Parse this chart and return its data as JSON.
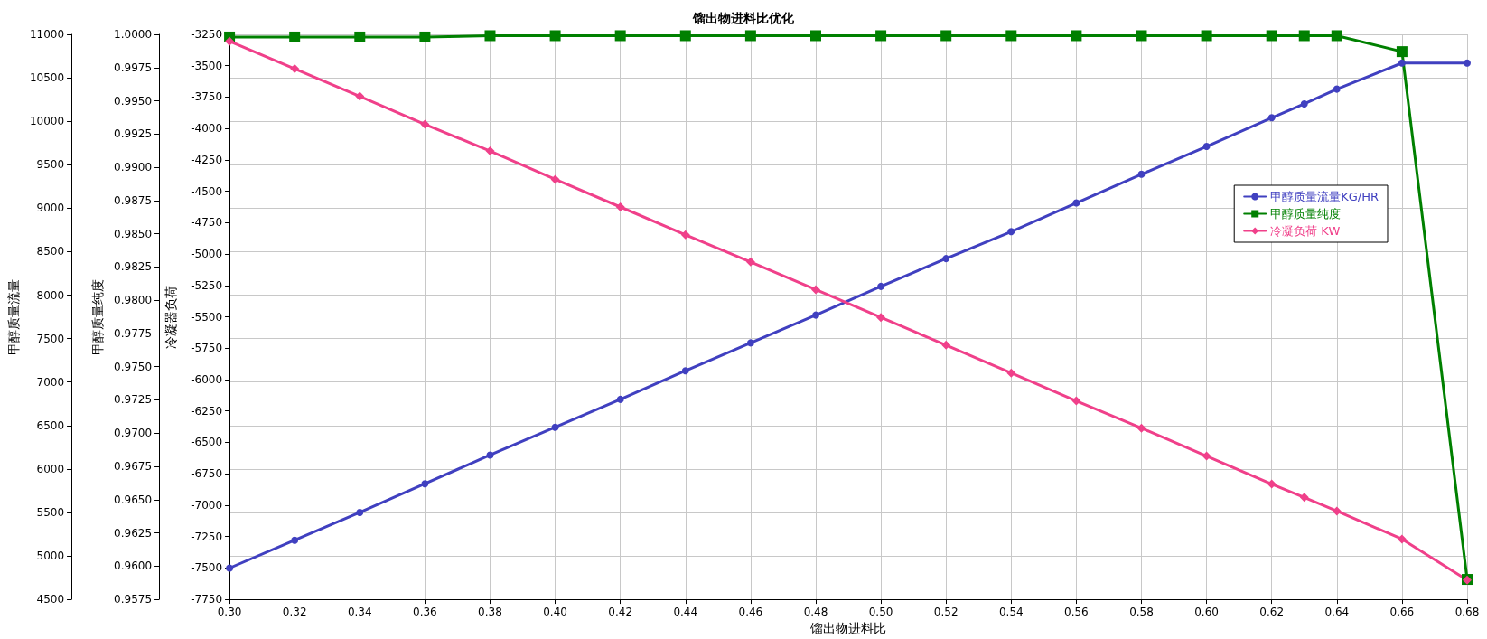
{
  "chart_data": {
    "type": "line",
    "title": "馏出物进料比优化",
    "xlabel": "馏出物进料比",
    "ylabel": "甲醇质量流量",
    "y2label": "甲醇质量纯度",
    "y3label": "冷凝器负荷",
    "x": [
      0.3,
      0.32,
      0.34,
      0.36,
      0.38,
      0.4,
      0.42,
      0.44,
      0.46,
      0.48,
      0.5,
      0.52,
      0.54,
      0.56,
      0.58,
      0.6,
      0.62,
      0.63,
      0.64,
      0.66,
      0.68
    ],
    "series": [
      {
        "name": "甲醇质量流量KG/HR",
        "color": "#4040c0",
        "axis": "y",
        "marker": "circle",
        "values": [
          4860,
          5180,
          5500,
          5830,
          6160,
          6480,
          6800,
          7130,
          7450,
          7770,
          8100,
          8420,
          8730,
          9060,
          9390,
          9710,
          10040,
          10200,
          10370,
          10670,
          10670
        ]
      },
      {
        "name": "甲醇质量纯度",
        "color": "#008000",
        "axis": "y2",
        "marker": "square",
        "values": [
          0.9998,
          0.9998,
          0.9998,
          0.9998,
          0.9999,
          0.9999,
          0.9999,
          0.9999,
          0.9999,
          0.9999,
          0.9999,
          0.9999,
          0.9999,
          0.9999,
          0.9999,
          0.9999,
          0.9999,
          0.9999,
          0.9999,
          0.9987,
          0.959
        ]
      },
      {
        "name": "冷凝负荷 KW",
        "color": "#f0408a",
        "axis": "y3",
        "marker": "diamond",
        "values": [
          -3305,
          -3524,
          -3744,
          -3967,
          -4179,
          -4405,
          -4625,
          -4847,
          -5063,
          -5283,
          -5505,
          -5725,
          -5947,
          -6170,
          -6386,
          -6609,
          -6832,
          -6938,
          -7047,
          -7270,
          -7596
        ]
      }
    ],
    "xlim": [
      0.3,
      0.68
    ],
    "xticks": [
      {
        "value": 0.3,
        "label": "0.30"
      },
      {
        "value": 0.32,
        "label": "0.32"
      },
      {
        "value": 0.34,
        "label": "0.34"
      },
      {
        "value": 0.36,
        "label": "0.36"
      },
      {
        "value": 0.38,
        "label": "0.38"
      },
      {
        "value": 0.4,
        "label": "0.40"
      },
      {
        "value": 0.42,
        "label": "0.42"
      },
      {
        "value": 0.44,
        "label": "0.44"
      },
      {
        "value": 0.46,
        "label": "0.46"
      },
      {
        "value": 0.48,
        "label": "0.48"
      },
      {
        "value": 0.5,
        "label": "0.50"
      },
      {
        "value": 0.52,
        "label": "0.52"
      },
      {
        "value": 0.54,
        "label": "0.54"
      },
      {
        "value": 0.56,
        "label": "0.56"
      },
      {
        "value": 0.58,
        "label": "0.58"
      },
      {
        "value": 0.6,
        "label": "0.60"
      },
      {
        "value": 0.62,
        "label": "0.62"
      },
      {
        "value": 0.64,
        "label": "0.64"
      },
      {
        "value": 0.66,
        "label": "0.66"
      },
      {
        "value": 0.68,
        "label": "0.68"
      }
    ],
    "ylim": [
      4500,
      11000
    ],
    "yticks": [
      4500,
      5000,
      5500,
      6000,
      6500,
      7000,
      7500,
      8000,
      8500,
      9000,
      9500,
      10000,
      10500,
      11000
    ],
    "y2lim": [
      0.9575,
      1.0
    ],
    "y2ticks": [
      {
        "value": 0.9575,
        "label": "0.9575"
      },
      {
        "value": 0.96,
        "label": "0.9600"
      },
      {
        "value": 0.9625,
        "label": "0.9625"
      },
      {
        "value": 0.965,
        "label": "0.9650"
      },
      {
        "value": 0.9675,
        "label": "0.9675"
      },
      {
        "value": 0.97,
        "label": "0.9700"
      },
      {
        "value": 0.9725,
        "label": "0.9725"
      },
      {
        "value": 0.975,
        "label": "0.9750"
      },
      {
        "value": 0.9775,
        "label": "0.9775"
      },
      {
        "value": 0.98,
        "label": "0.9800"
      },
      {
        "value": 0.9825,
        "label": "0.9825"
      },
      {
        "value": 0.985,
        "label": "0.9850"
      },
      {
        "value": 0.9875,
        "label": "0.9875"
      },
      {
        "value": 0.99,
        "label": "0.9900"
      },
      {
        "value": 0.9925,
        "label": "0.9925"
      },
      {
        "value": 0.995,
        "label": "0.9950"
      },
      {
        "value": 0.9975,
        "label": "0.9975"
      },
      {
        "value": 1.0,
        "label": "1.0000"
      }
    ],
    "y3lim": [
      -7750,
      -3250
    ],
    "y3ticks": [
      -7750,
      -7500,
      -7250,
      -7000,
      -6750,
      -6500,
      -6250,
      -6000,
      -5750,
      -5500,
      -5250,
      -5000,
      -4750,
      -4500,
      -4250,
      -4000,
      -3750,
      -3500,
      -3250
    ],
    "grid": true,
    "legend": "right",
    "line_style": "solid"
  }
}
